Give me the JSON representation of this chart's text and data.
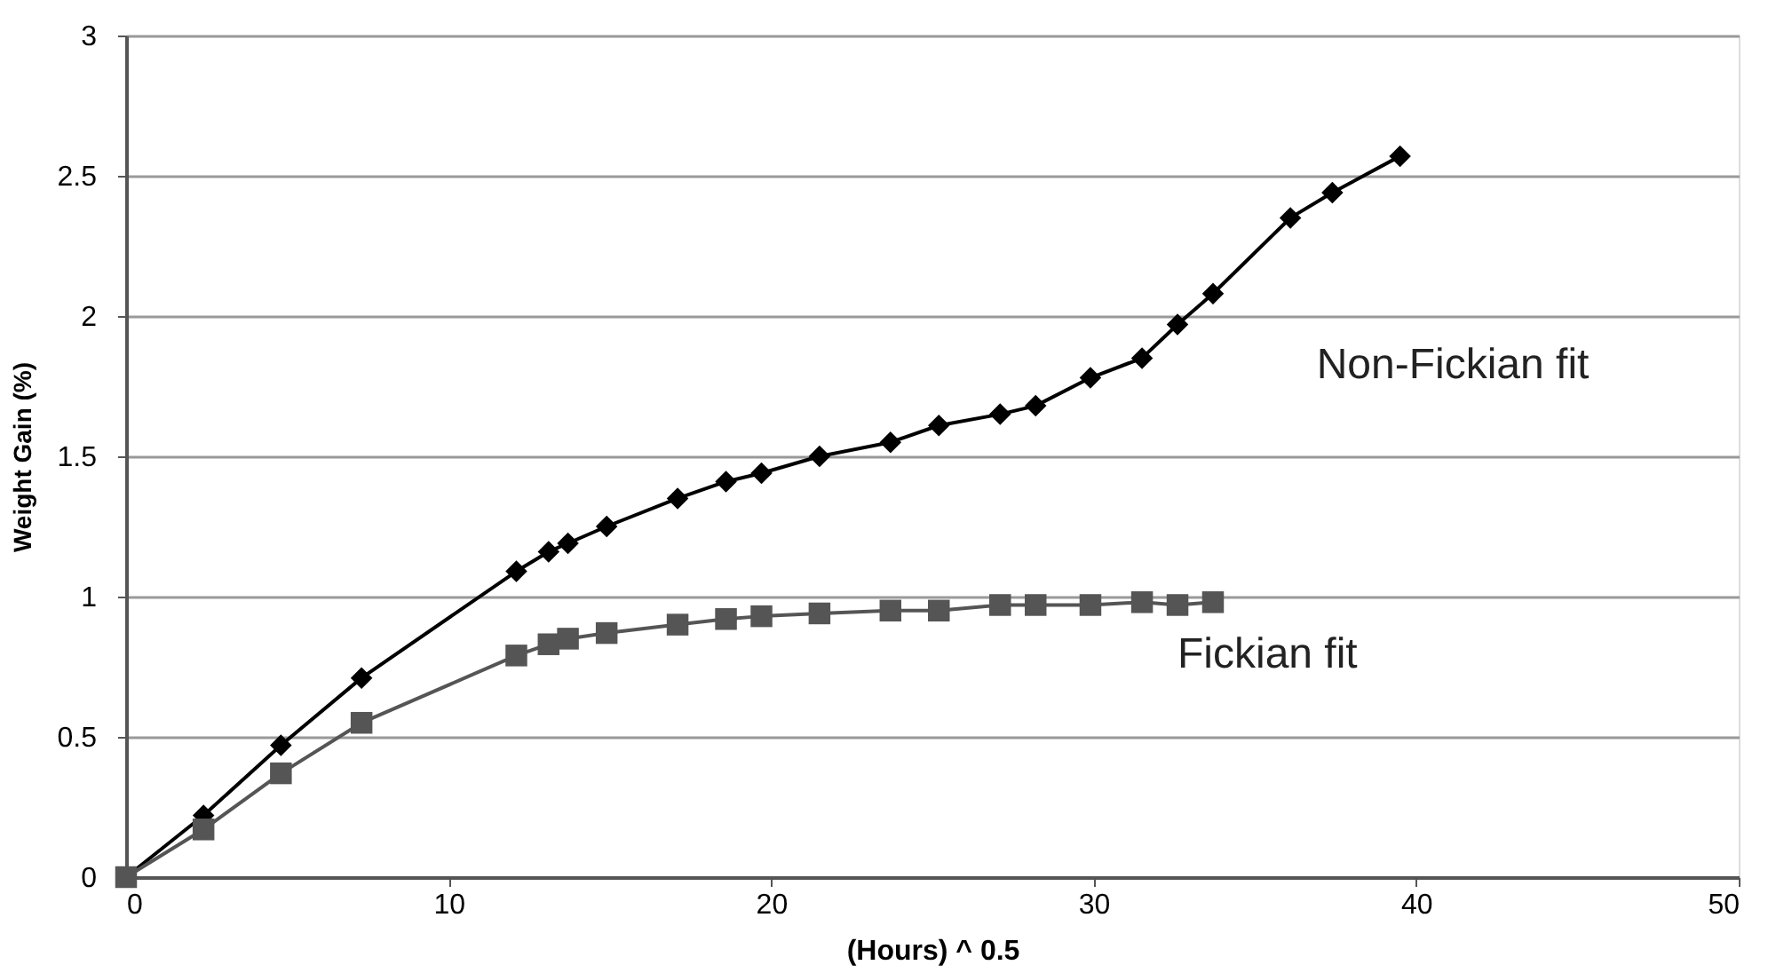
{
  "chart_data": {
    "type": "line",
    "xlabel": "(Hours) ^ 0.5",
    "ylabel": "Weight Gain (%)",
    "xlim": [
      0,
      50
    ],
    "xticks": [
      0,
      10,
      20,
      30,
      40,
      50
    ],
    "ylim": [
      0,
      3
    ],
    "yticks": [
      0,
      0.5,
      1,
      1.5,
      2,
      2.5,
      3
    ],
    "grid": "y",
    "legend": false,
    "series": [
      {
        "name": "Non-Fickian fit",
        "color": "#000000",
        "marker": "diamond",
        "x": [
          0,
          2.4,
          4.8,
          7.3,
          12.1,
          13.1,
          13.7,
          14.9,
          17.1,
          18.6,
          19.7,
          21.5,
          23.7,
          25.2,
          27.1,
          28.2,
          29.9,
          31.5,
          32.6,
          33.7,
          36.1,
          37.4,
          39.5
        ],
        "values": [
          0,
          0.22,
          0.47,
          0.71,
          1.09,
          1.16,
          1.19,
          1.25,
          1.35,
          1.41,
          1.44,
          1.5,
          1.55,
          1.61,
          1.65,
          1.68,
          1.78,
          1.85,
          1.97,
          2.08,
          2.35,
          2.44,
          2.57
        ]
      },
      {
        "name": "Fickian fit",
        "color": "#555555",
        "marker": "square",
        "x": [
          0,
          2.4,
          4.8,
          7.3,
          12.1,
          13.1,
          13.7,
          14.9,
          17.1,
          18.6,
          19.7,
          21.5,
          23.7,
          25.2,
          27.1,
          28.2,
          29.9,
          31.5,
          32.6,
          33.7
        ],
        "values": [
          0,
          0.17,
          0.37,
          0.55,
          0.79,
          0.83,
          0.85,
          0.87,
          0.9,
          0.92,
          0.93,
          0.94,
          0.95,
          0.95,
          0.97,
          0.97,
          0.97,
          0.98,
          0.97,
          0.98
        ]
      }
    ]
  }
}
